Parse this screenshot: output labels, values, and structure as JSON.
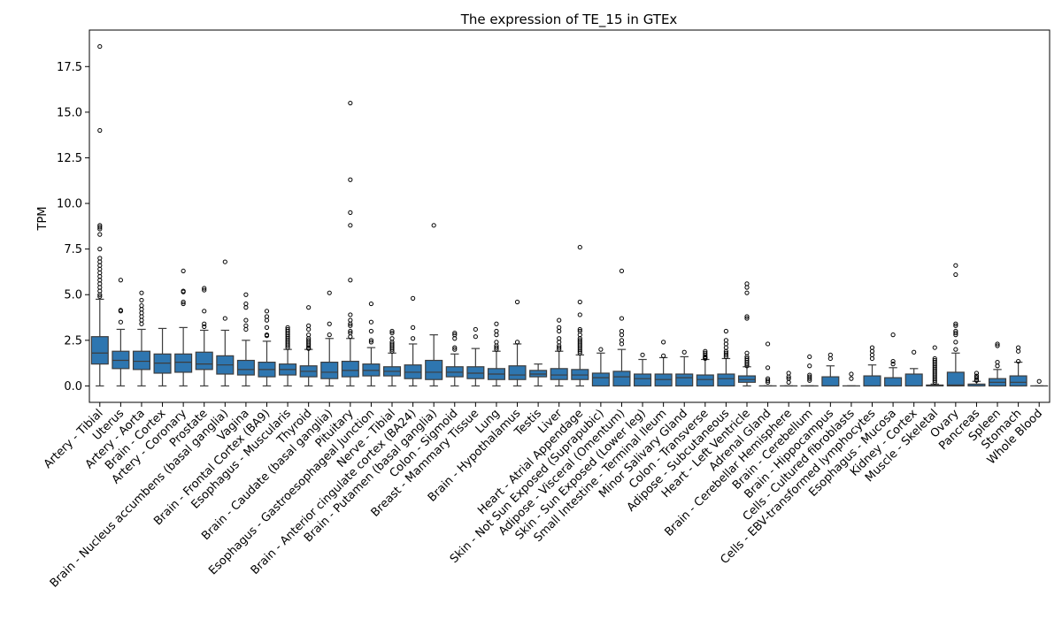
{
  "chart_data": {
    "type": "box",
    "title": "The expression of TE_15 in GTEx",
    "xlabel": "",
    "ylabel": "TPM",
    "ylim": [
      -0.9,
      19.5
    ],
    "yticks": [
      0.0,
      2.5,
      5.0,
      7.5,
      10.0,
      12.5,
      15.0,
      17.5
    ],
    "ytick_labels": [
      "0.0",
      "2.5",
      "5.0",
      "7.5",
      "10.0",
      "12.5",
      "15.0",
      "17.5"
    ],
    "grid": false,
    "color": "#2e76b0",
    "categories": [
      "Artery - Tibial",
      "Uterus",
      "Artery - Aorta",
      "Brain - Cortex",
      "Artery - Coronary",
      "Prostate",
      "Brain - Nucleus accumbens (basal ganglia)",
      "Vagina",
      "Brain - Frontal Cortex (BA9)",
      "Esophagus - Muscularis",
      "Thyroid",
      "Brain - Caudate (basal ganglia)",
      "Pituitary",
      "Esophagus - Gastroesophageal Junction",
      "Nerve - Tibial",
      "Brain - Anterior cingulate cortex (BA24)",
      "Brain - Putamen (basal ganglia)",
      "Colon - Sigmoid",
      "Breast - Mammary Tissue",
      "Lung",
      "Brain - Hypothalamus",
      "Testis",
      "Liver",
      "Heart - Atrial Appendage",
      "Skin - Not Sun Exposed (Suprapubic)",
      "Adipose - Visceral (Omentum)",
      "Skin - Sun Exposed (Lower leg)",
      "Small Intestine - Terminal Ileum",
      "Minor Salivary Gland",
      "Colon - Transverse",
      "Adipose - Subcutaneous",
      "Heart - Left Ventricle",
      "Adrenal Gland",
      "Brain - Cerebellar Hemisphere",
      "Brain - Cerebellum",
      "Brain - Hippocampus",
      "Cells - Cultured fibroblasts",
      "Cells - EBV-transformed lymphocytes",
      "Esophagus - Mucosa",
      "Kidney - Cortex",
      "Muscle - Skeletal",
      "Ovary",
      "Pancreas",
      "Spleen",
      "Stomach",
      "Whole Blood"
    ],
    "boxes": [
      {
        "whislo": 0.0,
        "q1": 1.2,
        "med": 1.8,
        "q3": 2.7,
        "whishi": 4.75,
        "fliers": [
          18.6,
          14.0,
          8.8,
          8.7,
          8.6,
          8.3,
          7.5,
          7.0,
          6.8,
          6.6,
          6.4,
          6.2,
          6.0,
          5.8,
          5.6,
          5.4,
          5.2,
          5.0,
          4.9
        ]
      },
      {
        "whislo": 0.0,
        "q1": 0.95,
        "med": 1.4,
        "q3": 1.9,
        "whishi": 3.1,
        "fliers": [
          5.8,
          4.15,
          4.1,
          3.5
        ]
      },
      {
        "whislo": 0.0,
        "q1": 0.9,
        "med": 1.35,
        "q3": 1.9,
        "whishi": 3.1,
        "fliers": [
          5.1,
          4.7,
          4.4,
          4.2,
          4.0,
          3.8,
          3.6,
          3.4
        ]
      },
      {
        "whislo": 0.0,
        "q1": 0.7,
        "med": 1.25,
        "q3": 1.75,
        "whishi": 3.15,
        "fliers": []
      },
      {
        "whislo": 0.0,
        "q1": 0.75,
        "med": 1.3,
        "q3": 1.75,
        "whishi": 3.2,
        "fliers": [
          6.3,
          5.2,
          5.15,
          4.6,
          4.5
        ]
      },
      {
        "whislo": 0.0,
        "q1": 0.9,
        "med": 1.2,
        "q3": 1.85,
        "whishi": 3.05,
        "fliers": [
          5.35,
          5.25,
          4.1,
          3.4,
          3.25
        ]
      },
      {
        "whislo": 0.0,
        "q1": 0.65,
        "med": 1.15,
        "q3": 1.65,
        "whishi": 3.05,
        "fliers": [
          6.8,
          3.7
        ]
      },
      {
        "whislo": 0.0,
        "q1": 0.6,
        "med": 0.9,
        "q3": 1.4,
        "whishi": 2.5,
        "fliers": [
          5.0,
          4.5,
          4.3,
          3.6,
          3.3,
          3.1
        ]
      },
      {
        "whislo": 0.0,
        "q1": 0.5,
        "med": 0.9,
        "q3": 1.3,
        "whishi": 2.45,
        "fliers": [
          4.1,
          3.8,
          3.6,
          3.2,
          2.8,
          2.75
        ]
      },
      {
        "whislo": 0.0,
        "q1": 0.6,
        "med": 0.9,
        "q3": 1.2,
        "whishi": 2.0,
        "fliers": [
          3.2,
          3.1,
          3.0,
          2.9,
          2.8,
          2.7,
          2.6,
          2.5,
          2.4,
          2.3,
          2.2,
          2.1
        ]
      },
      {
        "whislo": 0.0,
        "q1": 0.5,
        "med": 0.8,
        "q3": 1.1,
        "whishi": 2.0,
        "fliers": [
          4.3,
          3.3,
          3.1,
          2.8,
          2.6,
          2.5,
          2.4,
          2.3,
          2.2,
          2.1,
          2.05
        ]
      },
      {
        "whislo": 0.0,
        "q1": 0.4,
        "med": 0.75,
        "q3": 1.3,
        "whishi": 2.6,
        "fliers": [
          5.1,
          3.4,
          2.8
        ]
      },
      {
        "whislo": 0.0,
        "q1": 0.5,
        "med": 0.85,
        "q3": 1.35,
        "whishi": 2.6,
        "fliers": [
          15.5,
          11.3,
          9.5,
          8.8,
          5.8,
          3.9,
          3.6,
          3.4,
          3.3,
          3.0,
          2.9,
          2.7
        ]
      },
      {
        "whislo": 0.0,
        "q1": 0.55,
        "med": 0.85,
        "q3": 1.2,
        "whishi": 2.1,
        "fliers": [
          4.5,
          3.5,
          3.0,
          2.5,
          2.4
        ]
      },
      {
        "whislo": 0.0,
        "q1": 0.55,
        "med": 0.8,
        "q3": 1.05,
        "whishi": 1.8,
        "fliers": [
          3.0,
          2.9,
          2.6,
          2.4,
          2.3,
          2.2,
          2.1,
          2.0,
          1.9
        ]
      },
      {
        "whislo": 0.0,
        "q1": 0.4,
        "med": 0.75,
        "q3": 1.15,
        "whishi": 2.3,
        "fliers": [
          4.8,
          3.2,
          2.6
        ]
      },
      {
        "whislo": 0.0,
        "q1": 0.35,
        "med": 0.75,
        "q3": 1.4,
        "whishi": 2.8,
        "fliers": [
          8.8
        ]
      },
      {
        "whislo": 0.0,
        "q1": 0.5,
        "med": 0.75,
        "q3": 1.05,
        "whishi": 1.75,
        "fliers": [
          2.9,
          2.8,
          2.6,
          2.1,
          2.0
        ]
      },
      {
        "whislo": 0.0,
        "q1": 0.4,
        "med": 0.7,
        "q3": 1.05,
        "whishi": 2.05,
        "fliers": [
          3.1,
          2.7
        ]
      },
      {
        "whislo": 0.0,
        "q1": 0.35,
        "med": 0.65,
        "q3": 0.95,
        "whishi": 1.9,
        "fliers": [
          3.4,
          3.0,
          2.8,
          2.4,
          2.2,
          2.1,
          2.0
        ]
      },
      {
        "whislo": 0.0,
        "q1": 0.35,
        "med": 0.6,
        "q3": 1.1,
        "whishi": 2.3,
        "fliers": [
          4.6,
          2.4
        ]
      },
      {
        "whislo": 0.0,
        "q1": 0.5,
        "med": 0.65,
        "q3": 0.85,
        "whishi": 1.2,
        "fliers": []
      },
      {
        "whislo": 0.0,
        "q1": 0.35,
        "med": 0.6,
        "q3": 0.95,
        "whishi": 1.9,
        "fliers": [
          3.6,
          3.2,
          3.0,
          2.6,
          2.4,
          2.2,
          2.1,
          2.0
        ]
      },
      {
        "whislo": 0.0,
        "q1": 0.35,
        "med": 0.6,
        "q3": 0.9,
        "whishi": 1.7,
        "fliers": [
          7.6,
          4.6,
          3.9,
          3.1,
          3.0,
          2.8,
          2.6,
          2.5,
          2.4,
          2.3,
          2.2,
          2.1,
          2.0,
          1.9,
          1.8
        ]
      },
      {
        "whislo": 0.0,
        "q1": 0.0,
        "med": 0.45,
        "q3": 0.7,
        "whishi": 1.8,
        "fliers": [
          2.0
        ]
      },
      {
        "whislo": 0.0,
        "q1": 0.0,
        "med": 0.5,
        "q3": 0.8,
        "whishi": 2.0,
        "fliers": [
          6.3,
          3.7,
          3.0,
          2.8,
          2.5,
          2.3
        ]
      },
      {
        "whislo": 0.0,
        "q1": 0.0,
        "med": 0.4,
        "q3": 0.65,
        "whishi": 1.45,
        "fliers": [
          1.7
        ]
      },
      {
        "whislo": 0.0,
        "q1": 0.0,
        "med": 0.35,
        "q3": 0.65,
        "whishi": 1.55,
        "fliers": [
          2.4,
          1.65
        ]
      },
      {
        "whislo": 0.0,
        "q1": 0.0,
        "med": 0.45,
        "q3": 0.65,
        "whishi": 1.6,
        "fliers": [
          1.85
        ]
      },
      {
        "whislo": 0.0,
        "q1": 0.0,
        "med": 0.35,
        "q3": 0.6,
        "whishi": 1.45,
        "fliers": [
          1.9,
          1.8,
          1.7,
          1.6,
          1.55,
          1.5
        ]
      },
      {
        "whislo": 0.0,
        "q1": 0.0,
        "med": 0.4,
        "q3": 0.65,
        "whishi": 1.5,
        "fliers": [
          3.0,
          2.5,
          2.3,
          2.1,
          1.9,
          1.8,
          1.7,
          1.6
        ]
      },
      {
        "whislo": 0.0,
        "q1": 0.2,
        "med": 0.35,
        "q3": 0.55,
        "whishi": 1.05,
        "fliers": [
          5.6,
          5.4,
          5.1,
          3.8,
          3.7,
          1.8,
          1.6,
          1.5,
          1.4,
          1.3,
          1.2,
          1.1
        ]
      },
      {
        "whislo": 0.0,
        "q1": 0.0,
        "med": 0.0,
        "q3": 0.0,
        "whishi": 0.0,
        "fliers": [
          2.3,
          1.0,
          0.4,
          0.3,
          0.2
        ]
      },
      {
        "whislo": 0.0,
        "q1": 0.0,
        "med": 0.0,
        "q3": 0.0,
        "whishi": 0.0,
        "fliers": [
          0.7,
          0.5,
          0.4,
          0.2
        ]
      },
      {
        "whislo": 0.0,
        "q1": 0.0,
        "med": 0.0,
        "q3": 0.0,
        "whishi": 0.0,
        "fliers": [
          1.6,
          1.1,
          0.6,
          0.5,
          0.4,
          0.3
        ]
      },
      {
        "whislo": 0.0,
        "q1": 0.0,
        "med": 0.0,
        "q3": 0.5,
        "whishi": 1.1,
        "fliers": [
          1.7,
          1.5
        ]
      },
      {
        "whislo": 0.0,
        "q1": 0.0,
        "med": 0.0,
        "q3": 0.0,
        "whishi": 0.0,
        "fliers": [
          0.65,
          0.4
        ]
      },
      {
        "whislo": 0.0,
        "q1": 0.0,
        "med": 0.0,
        "q3": 0.55,
        "whishi": 1.15,
        "fliers": [
          2.1,
          1.9,
          1.7,
          1.5
        ]
      },
      {
        "whislo": 0.0,
        "q1": 0.0,
        "med": 0.0,
        "q3": 0.45,
        "whishi": 1.0,
        "fliers": [
          2.8,
          1.35,
          1.2
        ]
      },
      {
        "whislo": 0.0,
        "q1": 0.0,
        "med": 0.0,
        "q3": 0.65,
        "whishi": 0.95,
        "fliers": [
          1.85
        ]
      },
      {
        "whislo": 0.0,
        "q1": 0.0,
        "med": 0.0,
        "q3": 0.05,
        "whishi": 0.1,
        "fliers": [
          2.1,
          1.5,
          1.4,
          1.3,
          1.2,
          1.1,
          1.0,
          0.9,
          0.8,
          0.7,
          0.6,
          0.5,
          0.4,
          0.3,
          0.2
        ]
      },
      {
        "whislo": 0.0,
        "q1": 0.0,
        "med": 0.05,
        "q3": 0.75,
        "whishi": 1.8,
        "fliers": [
          6.6,
          6.1,
          3.4,
          3.3,
          3.0,
          2.9,
          2.8,
          2.4,
          2.0
        ]
      },
      {
        "whislo": 0.0,
        "q1": 0.0,
        "med": 0.0,
        "q3": 0.1,
        "whishi": 0.25,
        "fliers": [
          0.7,
          0.55,
          0.45,
          0.35,
          0.3
        ]
      },
      {
        "whislo": 0.0,
        "q1": 0.0,
        "med": 0.2,
        "q3": 0.4,
        "whishi": 0.9,
        "fliers": [
          2.3,
          2.2,
          1.3,
          1.1
        ]
      },
      {
        "whislo": 0.0,
        "q1": 0.0,
        "med": 0.2,
        "q3": 0.55,
        "whishi": 1.3,
        "fliers": [
          2.1,
          1.9,
          1.35
        ]
      },
      {
        "whislo": 0.0,
        "q1": 0.0,
        "med": 0.0,
        "q3": 0.0,
        "whishi": 0.0,
        "fliers": [
          0.25
        ]
      }
    ]
  }
}
